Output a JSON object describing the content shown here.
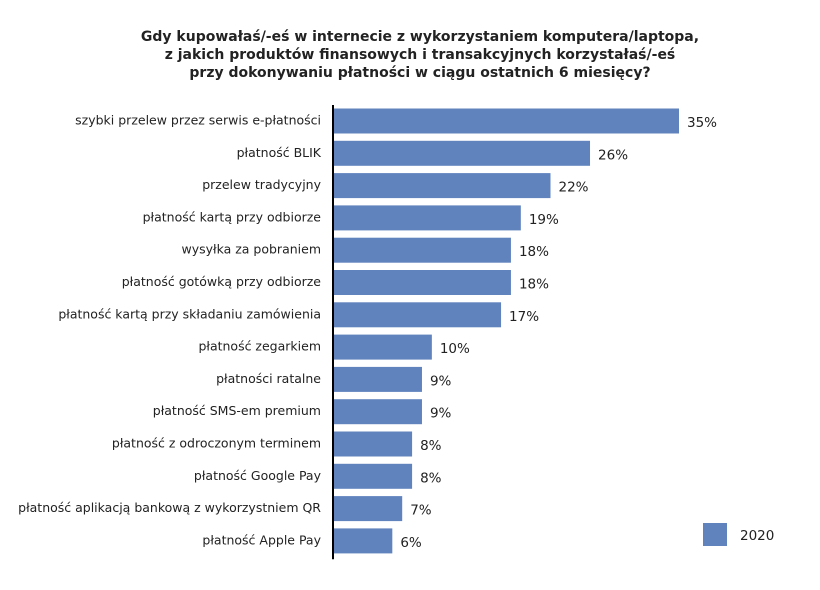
{
  "chart_data": {
    "type": "bar",
    "orientation": "horizontal",
    "title": [
      "Gdy kupowałaś/-eś w internecie z wykorzystaniem komputera/laptopa,",
      "z jakich produktów finansowych i transakcyjnych korzystałaś/-eś",
      "przy dokonywaniu płatności w ciągu ostatnich 6 miesięcy?"
    ],
    "categories": [
      "szybki przelew przez serwis e-płatności",
      "płatność BLIK",
      "przelew tradycyjny",
      "płatność kartą przy odbiorze",
      "wysyłka za pobraniem",
      "płatność gotówką przy odbiorze",
      "płatność kartą przy składaniu zamówienia",
      "płatność zegarkiem",
      "płatności ratalne",
      "płatność SMS-em premium",
      "płatność z odroczonym terminem",
      "płatność Google Pay",
      "płatność aplikacją bankową z wykorzystniem QR",
      "płatność Apple Pay"
    ],
    "series": [
      {
        "name": "2020",
        "color": "#6083bd",
        "values": [
          35,
          26,
          22,
          19,
          18,
          18,
          17,
          10,
          9,
          9,
          8,
          8,
          7,
          6
        ],
        "value_labels": [
          "35%",
          "26%",
          "22%",
          "19%",
          "18%",
          "18%",
          "17%",
          "10%",
          "9%",
          "9%",
          "8%",
          "8%",
          "7%",
          "6%"
        ]
      }
    ],
    "legend": "bottom-right"
  }
}
